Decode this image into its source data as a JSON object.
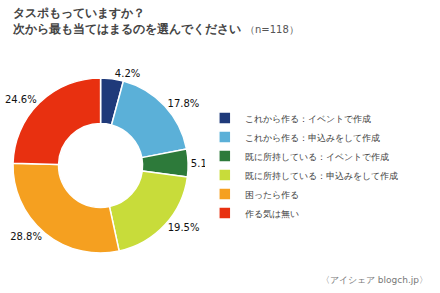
{
  "chart_data": {
    "type": "pie",
    "title": "タスポもっていますか？",
    "subtitle": "次から最も当てはまるのを選んでください",
    "annotations": [
      "（n=118）",
      "〈アイシェア blogch.jp〉"
    ],
    "categories": [
      "これから作る：イベントで作成",
      "これから作る：申込みをして作成",
      "既に所持している：イベントで作成",
      "既に所持している：申込みをして作成",
      "困ったら作る",
      "作る気は無い"
    ],
    "values": [
      4.2,
      17.8,
      5.1,
      19.5,
      28.8,
      24.6
    ],
    "value_labels": [
      "4.2%",
      "17.8%",
      "5.1%",
      "19.5%",
      "28.8%",
      "24.6%"
    ],
    "colors": [
      "#1f3a7a",
      "#5bb0d8",
      "#2d7a3a",
      "#c8dc3a",
      "#f5a020",
      "#e83010"
    ],
    "data_labels": true,
    "legend": "right"
  }
}
